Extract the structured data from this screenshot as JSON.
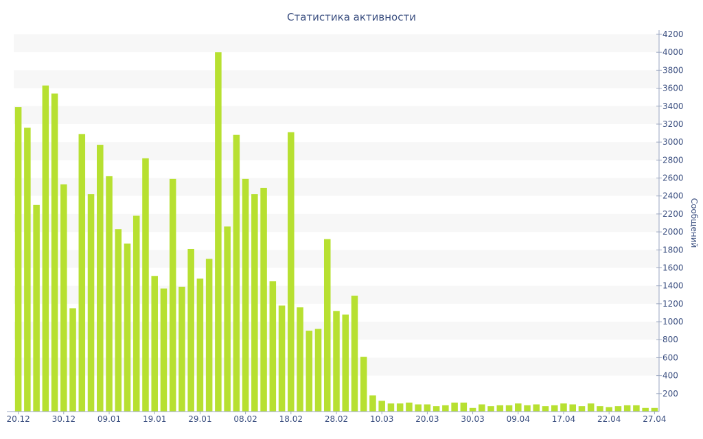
{
  "chart_data": {
    "type": "bar",
    "title": "Статистика активности",
    "xlabel": "",
    "ylabel": "Сообщений",
    "ylim": [
      0,
      4200
    ],
    "y_ticks": [
      200,
      400,
      600,
      800,
      1000,
      1200,
      1400,
      1600,
      1800,
      2000,
      2200,
      2400,
      2600,
      2800,
      3000,
      3200,
      3400,
      3600,
      3800,
      4000,
      4200
    ],
    "y_axis_position": "right",
    "x_tick_labels": [
      {
        "index": 0,
        "label": "20.12"
      },
      {
        "index": 5,
        "label": "30.12"
      },
      {
        "index": 10,
        "label": "09.01"
      },
      {
        "index": 15,
        "label": "19.01"
      },
      {
        "index": 20,
        "label": "29.01"
      },
      {
        "index": 25,
        "label": "08.02"
      },
      {
        "index": 30,
        "label": "18.02"
      },
      {
        "index": 35,
        "label": "28.02"
      },
      {
        "index": 40,
        "label": "10.03"
      },
      {
        "index": 45,
        "label": "20.03"
      },
      {
        "index": 50,
        "label": "30.03"
      },
      {
        "index": 55,
        "label": "09.04"
      },
      {
        "index": 60,
        "label": "17.04"
      },
      {
        "index": 65,
        "label": "22.04"
      },
      {
        "index": 70,
        "label": "27.04"
      }
    ],
    "values": [
      3390,
      3160,
      2300,
      3630,
      3540,
      2530,
      1150,
      3090,
      2420,
      2970,
      2620,
      2030,
      1870,
      2180,
      2820,
      1510,
      1370,
      2590,
      1390,
      1810,
      1480,
      1700,
      4000,
      2060,
      3080,
      2590,
      2420,
      2490,
      1450,
      1180,
      3110,
      1160,
      900,
      920,
      1920,
      1120,
      1080,
      1290,
      610,
      180,
      120,
      90,
      90,
      100,
      80,
      80,
      60,
      70,
      100,
      100,
      40,
      80,
      60,
      70,
      70,
      90,
      70,
      80,
      60,
      70,
      90,
      80,
      60,
      90,
      60,
      50,
      60,
      70,
      70,
      40,
      40
    ],
    "grid": "alternating horizontal bands",
    "colors": {
      "bar": "#b7e031",
      "band": "#f7f7f7",
      "axis_text": "#3b4f80"
    }
  }
}
